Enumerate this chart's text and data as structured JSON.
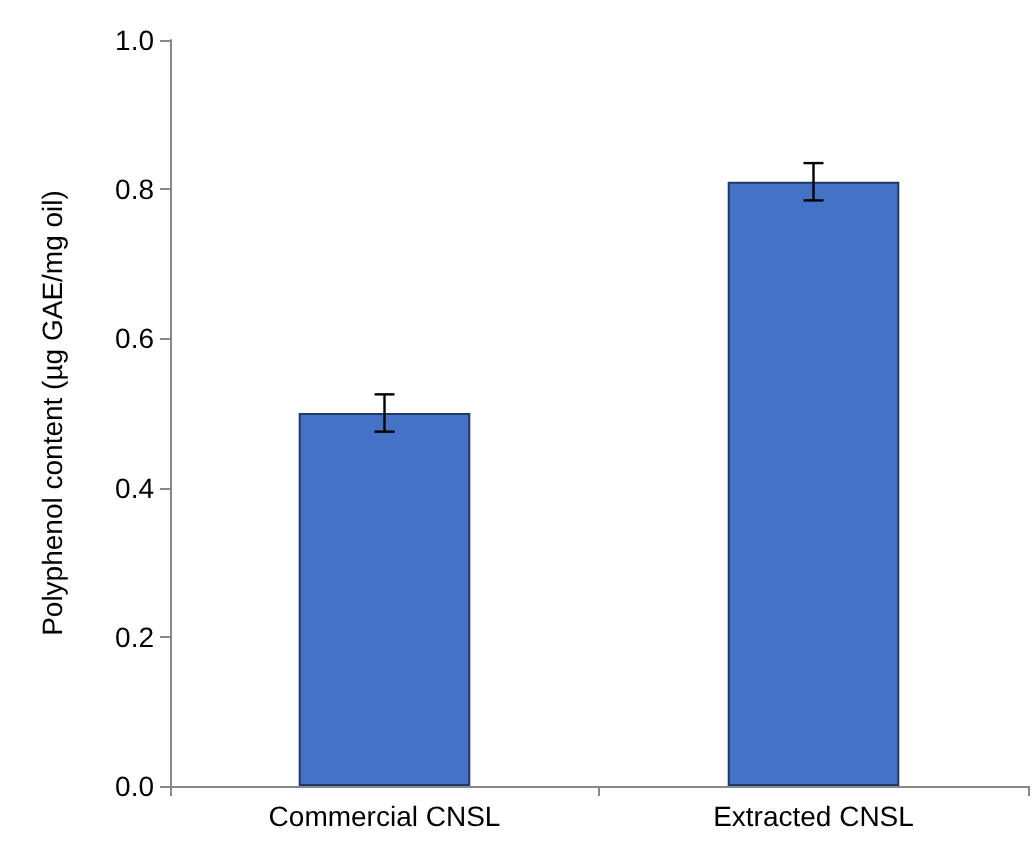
{
  "chart_data": {
    "type": "bar",
    "ylabel": "Polyphenol content (µg GAE/mg oil)",
    "categories": [
      "Commercial CNSL",
      "Extracted CNSL"
    ],
    "values": [
      0.5,
      0.81
    ],
    "errors": [
      0.025,
      0.025
    ],
    "color": "#4472c4",
    "ylim": [
      0,
      1.0
    ],
    "yticks": [
      {
        "value": 0,
        "label": "0.0"
      },
      {
        "value": 0.2,
        "label": "0.2"
      },
      {
        "value": 0.4,
        "label": "0.4"
      },
      {
        "value": 0.6,
        "label": "0.6"
      },
      {
        "value": 0.8,
        "label": "0.8"
      },
      {
        "value": 1.0,
        "label": "1.0"
      }
    ],
    "grid": false
  }
}
